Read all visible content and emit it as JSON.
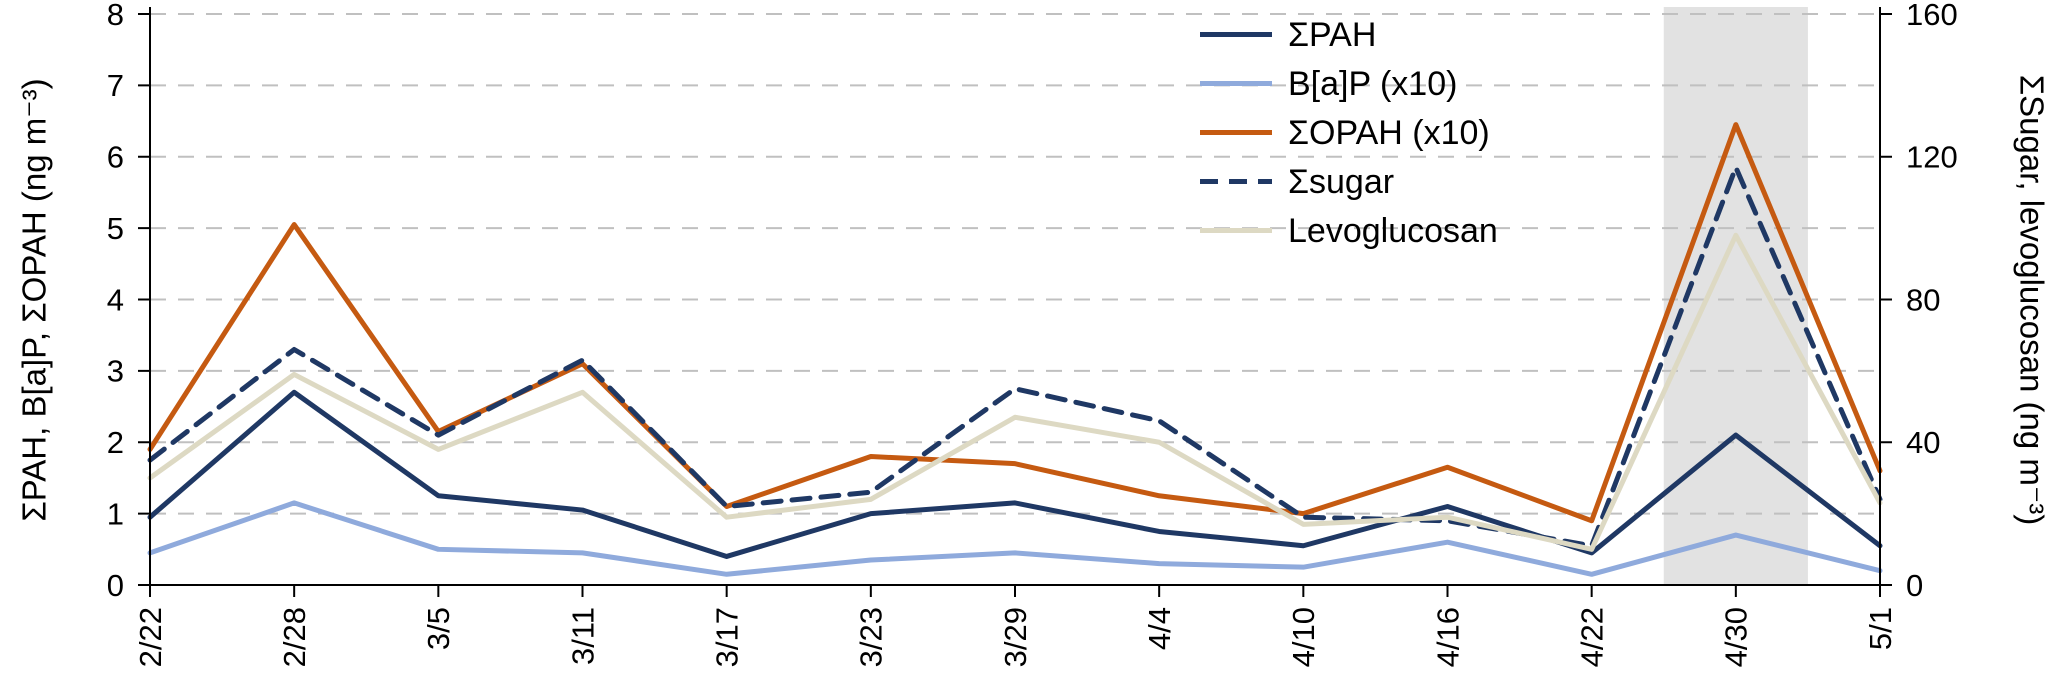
{
  "chart_data": {
    "type": "line",
    "title": "",
    "x_labels": [
      "2/22",
      "2/28",
      "3/5",
      "3/11",
      "3/17",
      "3/23",
      "3/29",
      "4/4",
      "4/10",
      "4/16",
      "4/22",
      "4/30",
      "5/1"
    ],
    "left_axis": {
      "label": "ΣPAH, B[a]P, ΣOPAH (ng m⁻³)",
      "ticks": [
        0,
        1,
        2,
        3,
        4,
        5,
        6,
        7,
        8
      ],
      "range": [
        0,
        8
      ]
    },
    "right_axis": {
      "label": "ΣSugar, levoglucosan (ng m⁻³)",
      "ticks": [
        0,
        40,
        80,
        120,
        160
      ],
      "range": [
        0,
        160
      ]
    },
    "grid": {
      "horizontal": "dashed",
      "color": "#c0c0c0"
    },
    "highlight_band": {
      "from_index": 10.5,
      "to_index": 11.5,
      "color": "#e2e2e2"
    },
    "legend_position": "top-center-inside",
    "series": [
      {
        "name": "ΣPAH",
        "axis": "left",
        "color": "#1f3864",
        "dash": "solid",
        "values": [
          0.95,
          2.7,
          1.25,
          1.05,
          0.4,
          1.0,
          1.15,
          0.75,
          0.55,
          1.1,
          0.45,
          2.1,
          0.55
        ]
      },
      {
        "name": "B[a]P (x10)",
        "axis": "left",
        "color": "#8faadc",
        "dash": "solid",
        "values": [
          0.45,
          1.15,
          0.5,
          0.45,
          0.15,
          0.35,
          0.45,
          0.3,
          0.25,
          0.6,
          0.15,
          0.7,
          0.2
        ]
      },
      {
        "name": "ΣOPAH (x10)",
        "axis": "left",
        "color": "#c55a11",
        "dash": "solid",
        "values": [
          1.9,
          5.05,
          2.15,
          3.1,
          1.1,
          1.8,
          1.7,
          1.25,
          1.0,
          1.65,
          0.9,
          6.45,
          1.6
        ]
      },
      {
        "name": "Σsugar",
        "axis": "right",
        "color": "#1f3864",
        "dash": "dashed",
        "values": [
          35,
          66,
          42,
          63,
          22,
          26,
          55,
          46,
          19,
          18,
          11,
          117,
          24
        ]
      },
      {
        "name": "Levoglucosan",
        "axis": "right",
        "color": "#ddd9c3",
        "dash": "solid",
        "values": [
          30,
          59,
          38,
          54,
          19,
          24,
          47,
          40,
          17,
          19,
          10,
          98,
          23
        ]
      }
    ]
  }
}
